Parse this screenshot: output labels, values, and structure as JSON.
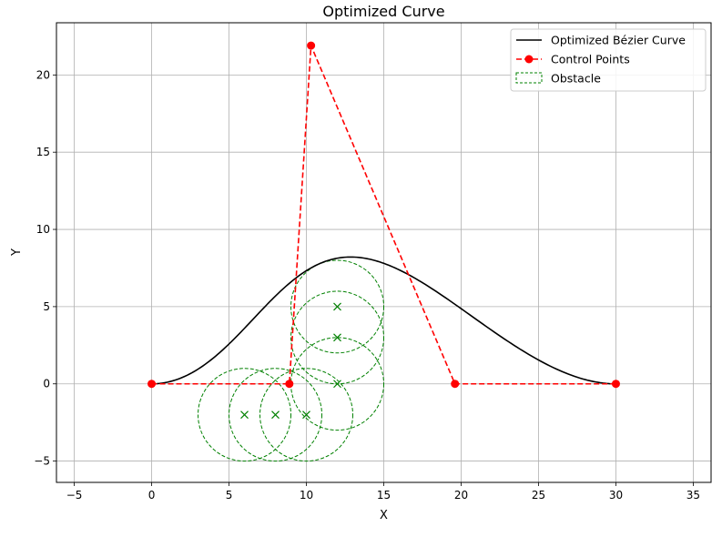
{
  "chart_data": {
    "type": "line",
    "title": "Optimized Curve",
    "xlabel": "X",
    "ylabel": "Y",
    "xlim": [
      -6.15,
      36.15
    ],
    "ylim": [
      -6.38,
      23.38
    ],
    "xticks": [
      -5,
      0,
      5,
      10,
      15,
      20,
      25,
      30,
      35
    ],
    "yticks": [
      -5,
      0,
      5,
      10,
      15,
      20
    ],
    "xtick_labels": [
      "−5",
      "0",
      "5",
      "10",
      "15",
      "20",
      "25",
      "30",
      "35"
    ],
    "ytick_labels": [
      "−5",
      "0",
      "5",
      "10",
      "15",
      "20"
    ],
    "grid": true,
    "legend_position": "top-right",
    "series": [
      {
        "name": "Optimized Bézier Curve",
        "kind": "bezier",
        "style": "solid",
        "color": "#000000"
      },
      {
        "name": "Control Points",
        "kind": "control-polygon",
        "style": "dashed",
        "marker": "circle",
        "color": "#ff0000",
        "points": [
          [
            0,
            0
          ],
          [
            8.9,
            0
          ],
          [
            10.3,
            21.9
          ],
          [
            19.6,
            0
          ],
          [
            30,
            0
          ]
        ]
      },
      {
        "name": "Obstacle",
        "kind": "circles",
        "style": "dashed",
        "color": "#008000",
        "center_marker": "x",
        "radius": 3,
        "centers": [
          [
            6,
            -2
          ],
          [
            8,
            -2
          ],
          [
            10,
            -2
          ],
          [
            12,
            0
          ],
          [
            12,
            3
          ],
          [
            12,
            5
          ]
        ]
      }
    ]
  }
}
